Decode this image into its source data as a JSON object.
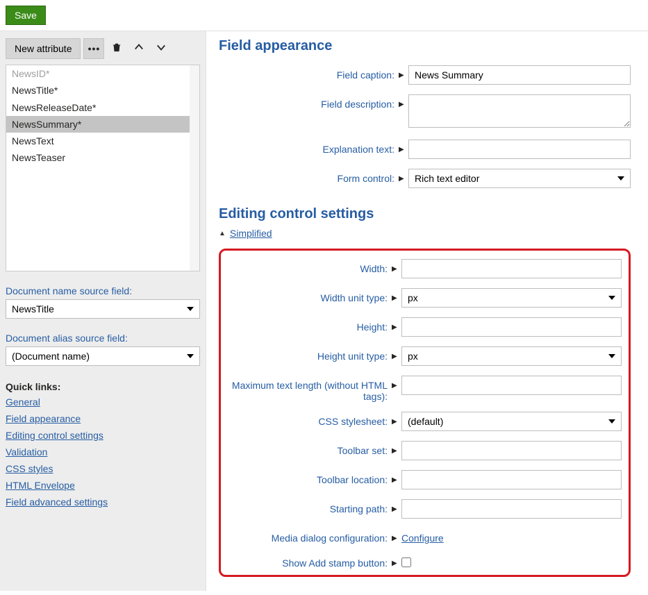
{
  "toolbar": {
    "save_label": "Save",
    "new_attribute_label": "New attribute"
  },
  "field_list": {
    "items": [
      {
        "label": "NewsID*",
        "disabled": true,
        "selected": false
      },
      {
        "label": "NewsTitle*",
        "disabled": false,
        "selected": false
      },
      {
        "label": "NewsReleaseDate*",
        "disabled": false,
        "selected": false
      },
      {
        "label": "NewsSummary*",
        "disabled": false,
        "selected": true
      },
      {
        "label": "NewsText",
        "disabled": false,
        "selected": false
      },
      {
        "label": "NewsTeaser",
        "disabled": false,
        "selected": false
      }
    ]
  },
  "sidebar": {
    "doc_name_source_label": "Document name source field:",
    "doc_name_source_value": "NewsTitle",
    "doc_alias_source_label": "Document alias source field:",
    "doc_alias_source_value": "(Document name)",
    "quick_links_title": "Quick links:",
    "quick_links": [
      "General",
      "Field appearance",
      "Editing control settings",
      "Validation",
      "CSS styles",
      "HTML Envelope",
      "Field advanced settings"
    ]
  },
  "appearance": {
    "section_title": "Field appearance",
    "field_caption_label": "Field caption:",
    "field_caption_value": "News Summary",
    "field_description_label": "Field description:",
    "field_description_value": "",
    "explanation_text_label": "Explanation text:",
    "explanation_text_value": "",
    "form_control_label": "Form control:",
    "form_control_value": "Rich text editor"
  },
  "editing": {
    "section_title": "Editing control settings",
    "collapse_label": "Simplified",
    "width_label": "Width:",
    "width_value": "",
    "width_unit_label": "Width unit type:",
    "width_unit_value": "px",
    "height_label": "Height:",
    "height_value": "",
    "height_unit_label": "Height unit type:",
    "height_unit_value": "px",
    "max_text_label": "Maximum text length (without HTML tags):",
    "max_text_value": "",
    "css_stylesheet_label": "CSS stylesheet:",
    "css_stylesheet_value": "(default)",
    "toolbar_set_label": "Toolbar set:",
    "toolbar_set_value": "",
    "toolbar_location_label": "Toolbar location:",
    "toolbar_location_value": "",
    "starting_path_label": "Starting path:",
    "starting_path_value": "",
    "media_dialog_label": "Media dialog configuration:",
    "media_dialog_link": "Configure",
    "show_stamp_label": "Show Add stamp button:"
  },
  "colors": {
    "accent": "#265da3",
    "save_green": "#3b8b18",
    "highlight_red": "#d71920",
    "sidebar_bg": "#ededed"
  }
}
